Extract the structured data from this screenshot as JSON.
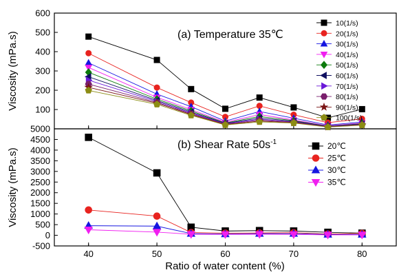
{
  "chart_data": [
    {
      "type": "line",
      "title": "(a) Temperature 35℃",
      "xlabel": "Ratio of water content (%)",
      "ylabel": "Viscosity (mPa.s)",
      "x": [
        40,
        50,
        55,
        60,
        65,
        70,
        75,
        80
      ],
      "xlim": [
        35,
        85
      ],
      "xticks": [
        "40",
        "50",
        "60",
        "70",
        "80"
      ],
      "ylim": [
        0,
        600
      ],
      "yticks": [
        "100",
        "200",
        "300",
        "400",
        "500",
        "600"
      ],
      "legend_position": "top-right",
      "series": [
        {
          "name": "10(1/s)",
          "marker": "square",
          "color": "#000000",
          "values": [
            478,
            357,
            206,
            104,
            162,
            111,
            57,
            102
          ]
        },
        {
          "name": "20(1/s)",
          "marker": "circle",
          "color": "#e8231f",
          "values": [
            392,
            214,
            136,
            62,
            119,
            73,
            32,
            52
          ]
        },
        {
          "name": "30(1/s)",
          "marker": "triangle-up",
          "color": "#1515e0",
          "values": [
            342,
            180,
            115,
            40,
            90,
            55,
            20,
            35
          ]
        },
        {
          "name": "40(1/s)",
          "marker": "triangle-down",
          "color": "#f01ef0",
          "values": [
            318,
            163,
            100,
            34,
            74,
            46,
            16,
            30
          ]
        },
        {
          "name": "50(1/s)",
          "marker": "diamond",
          "color": "#0c7a0c",
          "values": [
            293,
            154,
            93,
            30,
            64,
            42,
            14,
            27
          ]
        },
        {
          "name": "60(1/s)",
          "marker": "triangle-left",
          "color": "#101060",
          "values": [
            270,
            147,
            87,
            28,
            56,
            39,
            13,
            25
          ]
        },
        {
          "name": "70(1/s)",
          "marker": "triangle-right",
          "color": "#6a18d8",
          "values": [
            252,
            142,
            82,
            26,
            50,
            36,
            12,
            23
          ]
        },
        {
          "name": "80(1/s)",
          "marker": "hexagon",
          "color": "#7a1e6c",
          "values": [
            232,
            137,
            78,
            24,
            45,
            34,
            11,
            22
          ]
        },
        {
          "name": "90(1/s)",
          "marker": "star",
          "color": "#7a1414",
          "values": [
            215,
            133,
            74,
            22,
            40,
            32,
            10,
            20
          ]
        },
        {
          "name": "100(1/s)",
          "marker": "pentagon",
          "color": "#8c8c14",
          "values": [
            199,
            127,
            70,
            20,
            36,
            30,
            9,
            19
          ]
        }
      ]
    },
    {
      "type": "line",
      "title": "(b) Shear Rate 50s",
      "title_superscript": "-1",
      "xlabel": "Ratio of water content (%)",
      "ylabel": "Viscosity (mPa.s)",
      "x": [
        40,
        50,
        55,
        60,
        65,
        70,
        75,
        80
      ],
      "xlim": [
        35,
        85
      ],
      "xticks": [
        "40",
        "50",
        "60",
        "70",
        "80"
      ],
      "ylim": [
        -500,
        5000
      ],
      "yticks": [
        "-500",
        "0",
        "500",
        "1000",
        "1500",
        "2000",
        "2500",
        "3000",
        "3500",
        "4000",
        "4500",
        "5000"
      ],
      "legend_position": "top-right",
      "series": [
        {
          "name": "20℃",
          "marker": "square",
          "color": "#000000",
          "values": [
            4600,
            2930,
            380,
            200,
            220,
            200,
            140,
            100
          ]
        },
        {
          "name": "25℃",
          "marker": "circle",
          "color": "#e8231f",
          "values": [
            1190,
            900,
            130,
            100,
            110,
            120,
            60,
            90
          ]
        },
        {
          "name": "30℃",
          "marker": "triangle-up",
          "color": "#1515e0",
          "values": [
            450,
            430,
            80,
            60,
            80,
            80,
            40,
            40
          ]
        },
        {
          "name": "35℃",
          "marker": "triangle-down",
          "color": "#f01ef0",
          "values": [
            260,
            150,
            50,
            40,
            50,
            40,
            20,
            20
          ]
        }
      ]
    }
  ]
}
